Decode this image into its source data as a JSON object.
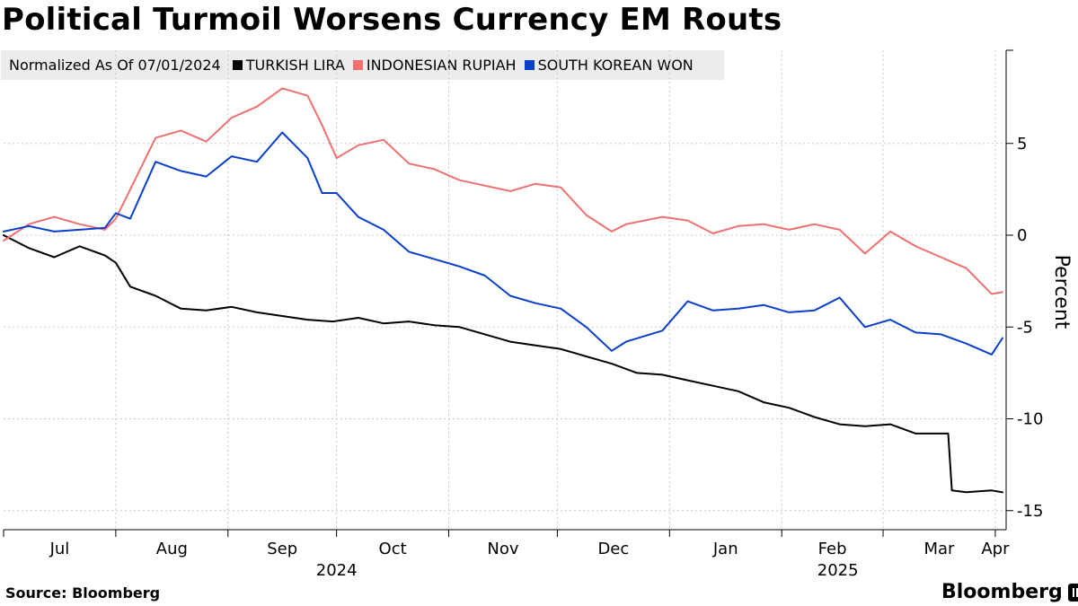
{
  "title": "Political Turmoil Worsens Currency EM Routs",
  "legend": {
    "note": "Normalized As Of 07/01/2024",
    "items": [
      {
        "label": "TURKISH LIRA",
        "color": "#000000"
      },
      {
        "label": "INDONESIAN RUPIAH",
        "color": "#f07070"
      },
      {
        "label": "SOUTH KOREAN WON",
        "color": "#0a3fcc"
      }
    ]
  },
  "source": "Source: Bloomberg",
  "brand": "Bloomberg",
  "chart_data": {
    "type": "line",
    "ylabel": "Percent",
    "ylim": [
      -15.5,
      10
    ],
    "y_ticks": [
      -15,
      -10,
      -5,
      0,
      5
    ],
    "y_tick_labels": [
      "-15",
      "-10",
      "-5",
      "0",
      "5"
    ],
    "x_tick_labels": [
      "Jul",
      "Aug",
      "Sep",
      "Oct",
      "Nov",
      "Dec",
      "Jan",
      "Feb",
      "Mar",
      "Apr"
    ],
    "year_labels": [
      "2024",
      "2025"
    ],
    "grid": true,
    "legend_position": "top-left",
    "series": [
      {
        "name": "TURKISH LIRA",
        "color": "#000000",
        "dates": [
          "2024-07-01",
          "2024-07-08",
          "2024-07-15",
          "2024-07-22",
          "2024-07-29",
          "2024-08-01",
          "2024-08-05",
          "2024-08-12",
          "2024-08-19",
          "2024-08-26",
          "2024-09-02",
          "2024-09-09",
          "2024-09-16",
          "2024-09-23",
          "2024-09-30",
          "2024-10-07",
          "2024-10-14",
          "2024-10-21",
          "2024-10-28",
          "2024-11-04",
          "2024-11-11",
          "2024-11-18",
          "2024-11-25",
          "2024-12-02",
          "2024-12-09",
          "2024-12-16",
          "2024-12-23",
          "2024-12-30",
          "2025-01-06",
          "2025-01-13",
          "2025-01-20",
          "2025-01-27",
          "2025-02-03",
          "2025-02-10",
          "2025-02-17",
          "2025-02-24",
          "2025-03-03",
          "2025-03-10",
          "2025-03-17",
          "2025-03-19",
          "2025-03-20",
          "2025-03-24",
          "2025-03-31",
          "2025-04-03"
        ],
        "values": [
          0.0,
          -0.7,
          -1.2,
          -0.6,
          -1.1,
          -1.5,
          -2.8,
          -3.3,
          -4.0,
          -4.1,
          -3.9,
          -4.2,
          -4.4,
          -4.6,
          -4.7,
          -4.5,
          -4.8,
          -4.7,
          -4.9,
          -5.0,
          -5.4,
          -5.8,
          -6.0,
          -6.2,
          -6.6,
          -7.0,
          -7.5,
          -7.6,
          -7.9,
          -8.2,
          -8.5,
          -9.1,
          -9.4,
          -9.9,
          -10.3,
          -10.4,
          -10.3,
          -10.8,
          -10.8,
          -10.8,
          -13.9,
          -14.0,
          -13.9,
          -14.0
        ]
      },
      {
        "name": "INDONESIAN RUPIAH",
        "color": "#f07070",
        "dates": [
          "2024-07-01",
          "2024-07-08",
          "2024-07-15",
          "2024-07-22",
          "2024-07-29",
          "2024-08-01",
          "2024-08-05",
          "2024-08-12",
          "2024-08-19",
          "2024-08-26",
          "2024-09-02",
          "2024-09-09",
          "2024-09-16",
          "2024-09-23",
          "2024-09-27",
          "2024-10-01",
          "2024-10-07",
          "2024-10-14",
          "2024-10-21",
          "2024-10-28",
          "2024-11-04",
          "2024-11-11",
          "2024-11-18",
          "2024-11-25",
          "2024-12-02",
          "2024-12-09",
          "2024-12-16",
          "2024-12-20",
          "2024-12-30",
          "2025-01-06",
          "2025-01-13",
          "2025-01-20",
          "2025-01-27",
          "2025-02-03",
          "2025-02-10",
          "2025-02-17",
          "2025-02-24",
          "2025-03-03",
          "2025-03-10",
          "2025-03-17",
          "2025-03-24",
          "2025-03-31",
          "2025-04-03"
        ],
        "values": [
          -0.3,
          0.6,
          1.0,
          0.6,
          0.3,
          0.9,
          2.5,
          5.3,
          5.7,
          5.1,
          6.4,
          7.0,
          8.0,
          7.6,
          6.0,
          4.2,
          4.9,
          5.2,
          3.9,
          3.6,
          3.0,
          2.7,
          2.4,
          2.8,
          2.6,
          1.1,
          0.2,
          0.6,
          1.0,
          0.8,
          0.1,
          0.5,
          0.6,
          0.3,
          0.6,
          0.3,
          -1.0,
          0.2,
          -0.6,
          -1.2,
          -1.8,
          -3.2,
          -3.1
        ]
      },
      {
        "name": "SOUTH KOREAN WON",
        "color": "#0a3fcc",
        "dates": [
          "2024-07-01",
          "2024-07-08",
          "2024-07-15",
          "2024-07-22",
          "2024-07-29",
          "2024-08-01",
          "2024-08-05",
          "2024-08-12",
          "2024-08-19",
          "2024-08-26",
          "2024-09-02",
          "2024-09-09",
          "2024-09-16",
          "2024-09-23",
          "2024-09-27",
          "2024-10-01",
          "2024-10-07",
          "2024-10-14",
          "2024-10-21",
          "2024-10-28",
          "2024-11-04",
          "2024-11-11",
          "2024-11-18",
          "2024-11-25",
          "2024-12-02",
          "2024-12-09",
          "2024-12-16",
          "2024-12-20",
          "2024-12-30",
          "2025-01-06",
          "2025-01-13",
          "2025-01-20",
          "2025-01-27",
          "2025-02-03",
          "2025-02-10",
          "2025-02-17",
          "2025-02-24",
          "2025-03-03",
          "2025-03-10",
          "2025-03-17",
          "2025-03-24",
          "2025-03-31",
          "2025-04-03"
        ],
        "values": [
          0.2,
          0.5,
          0.2,
          0.3,
          0.4,
          1.2,
          0.9,
          4.0,
          3.5,
          3.2,
          4.3,
          4.0,
          5.6,
          4.2,
          2.3,
          2.3,
          1.0,
          0.3,
          -0.9,
          -1.3,
          -1.7,
          -2.2,
          -3.3,
          -3.7,
          -4.0,
          -5.0,
          -6.3,
          -5.8,
          -5.2,
          -3.6,
          -4.1,
          -4.0,
          -3.8,
          -4.2,
          -4.1,
          -3.4,
          -5.0,
          -4.6,
          -5.3,
          -5.4,
          -5.9,
          -6.5,
          -5.6
        ]
      }
    ]
  }
}
